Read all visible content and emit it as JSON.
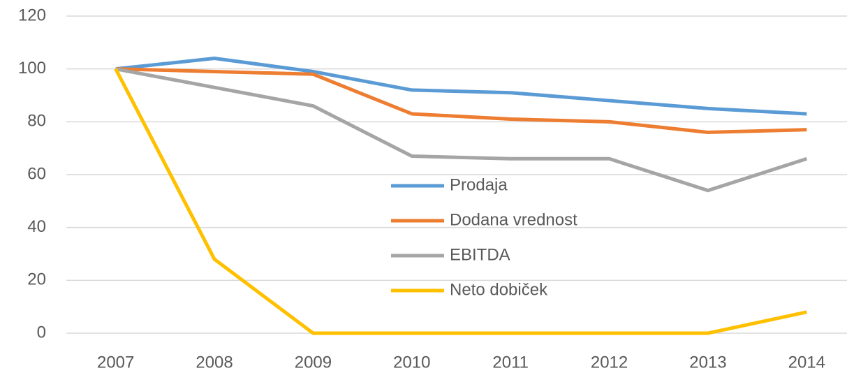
{
  "chart_data": {
    "type": "line",
    "categories": [
      "2007",
      "2008",
      "2009",
      "2010",
      "2011",
      "2012",
      "2013",
      "2014"
    ],
    "series": [
      {
        "name": "Prodaja",
        "color": "#5b9bd5",
        "values": [
          100,
          104,
          99,
          92,
          91,
          88,
          85,
          83
        ]
      },
      {
        "name": "Dodana vrednost",
        "color": "#ed7d31",
        "values": [
          100,
          99,
          98,
          83,
          81,
          80,
          76,
          77
        ]
      },
      {
        "name": "EBITDA",
        "color": "#a5a5a5",
        "values": [
          100,
          93,
          86,
          67,
          66,
          66,
          54,
          66
        ]
      },
      {
        "name": "Neto dobiček",
        "color": "#ffc000",
        "values": [
          100,
          28,
          0,
          0,
          0,
          0,
          0,
          8
        ]
      }
    ],
    "ylim": [
      0,
      120
    ],
    "yticks": [
      0,
      20,
      40,
      60,
      80,
      100,
      120
    ],
    "grid": true,
    "legend": "center"
  }
}
